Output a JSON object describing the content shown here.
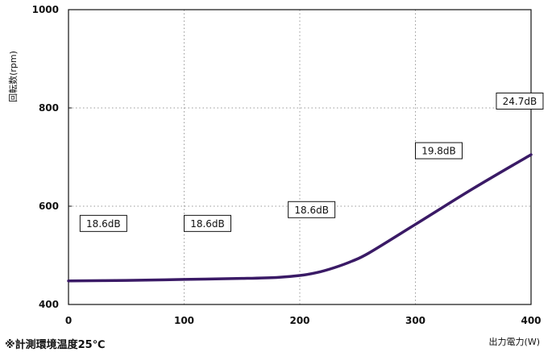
{
  "chart_data": {
    "type": "line",
    "xlabel": "出力電力(W)",
    "ylabel": "回転数(rpm)",
    "xlim": [
      0,
      400
    ],
    "ylim": [
      400,
      1000
    ],
    "x_ticks": [
      "0",
      "100",
      "200",
      "300",
      "400"
    ],
    "y_ticks": [
      "400",
      "600",
      "800",
      "1000"
    ],
    "grid": true,
    "series": [
      {
        "color": "#3a1a66",
        "points": [
          [
            0,
            448
          ],
          [
            50,
            449
          ],
          [
            100,
            451
          ],
          [
            150,
            453
          ],
          [
            180,
            455
          ],
          [
            200,
            459
          ],
          [
            215,
            465
          ],
          [
            230,
            475
          ],
          [
            245,
            488
          ],
          [
            260,
            505
          ],
          [
            300,
            563
          ],
          [
            350,
            636
          ],
          [
            400,
            705
          ]
        ]
      }
    ],
    "annotations": [
      {
        "x": 10,
        "y": 565,
        "text": "18.6dB"
      },
      {
        "x": 100,
        "y": 565,
        "text": "18.6dB"
      },
      {
        "x": 190,
        "y": 593,
        "text": "18.6dB"
      },
      {
        "x": 300,
        "y": 713,
        "text": "19.8dB"
      },
      {
        "x": 370,
        "y": 814,
        "text": "24.7dB"
      }
    ],
    "note": "※計測環境温度25℃"
  }
}
